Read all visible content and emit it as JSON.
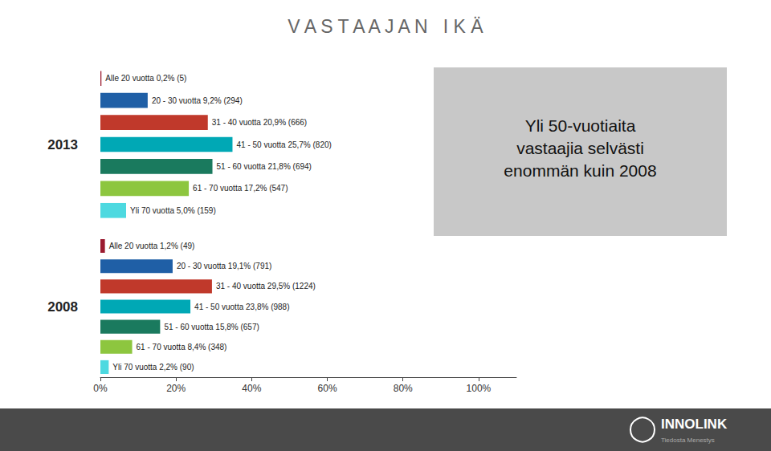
{
  "chart_data": [
    {
      "type": "bar",
      "orientation": "horizontal",
      "title": "V A S T A A J A N   I K Ä",
      "ylabel": "2013",
      "categories": [
        "Alle 20 vuotta 0,2% (5)",
        "20 - 30 vuotta 9,2% (294)",
        "31 - 40 vuotta 20,9% (666)",
        "41 - 50 vuotta 25,7% (820)",
        "51 - 60 vuotta 21,8% (694)",
        "61 - 70 vuotta 17,2% (547)",
        "Yli 70 vuotta 5,0% (159)"
      ],
      "values": [
        0.2,
        9.2,
        20.9,
        25.7,
        21.8,
        17.2,
        5.0
      ],
      "colors": [
        "#9b1b30",
        "#1f5fa6",
        "#c0392b",
        "#00a8b5",
        "#1a7a5e",
        "#8dc63f",
        "#4dd9e0"
      ],
      "xlim": [
        0,
        60
      ],
      "grid": false,
      "tick_labels": false,
      "annotations": [
        "Yli 50-vuotiaita\nvastaajia selvästi\nenommän kuin 2008",
        "INNOLINK",
        "Tiedosta Menestys"
      ]
    },
    {
      "type": "bar",
      "orientation": "horizontal",
      "ylabel": "2008",
      "categories": [
        "Alle 20 vuotta 1,2% (49)",
        "20 - 30 vuotta 19,1% (791)",
        "31 - 40 vuotta 29,5% (1224)",
        "41 - 50 vuotta 23,8% (988)",
        "51 - 60 vuotta 15,8% (657)",
        "61 - 70 vuotta 8,4% (348)",
        "Yli 70 vuotta 2,2% (90)"
      ],
      "values": [
        1.2,
        19.1,
        29.5,
        23.8,
        15.8,
        8.4,
        2.2
      ],
      "colors": [
        "#9b1b30",
        "#1f5fa6",
        "#c0392b",
        "#00a8b5",
        "#1a7a5e",
        "#8dc63f",
        "#4dd9e0"
      ],
      "xlim": [
        0,
        110
      ],
      "xticks": [
        {
          "value": 0,
          "label": "0%"
        },
        {
          "value": 20,
          "label": "20%"
        },
        {
          "value": 40,
          "label": "40%"
        },
        {
          "value": 60,
          "label": "60%"
        },
        {
          "value": 80,
          "label": "80%"
        },
        {
          "value": 100,
          "label": "100%"
        }
      ],
      "grid": false,
      "tick_labels": "x"
    }
  ]
}
